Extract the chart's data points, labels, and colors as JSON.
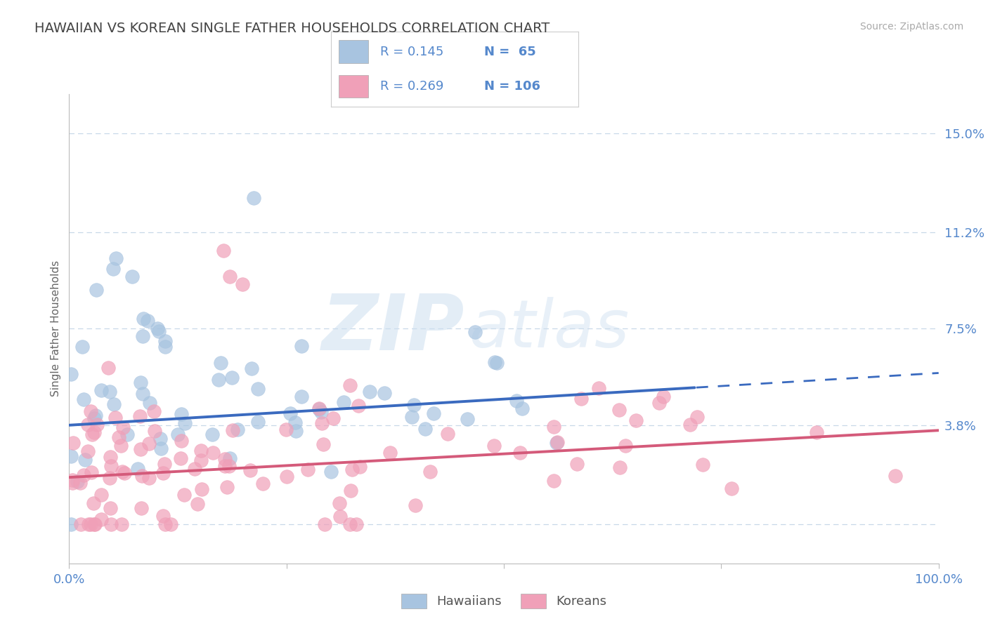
{
  "title": "HAWAIIAN VS KOREAN SINGLE FATHER HOUSEHOLDS CORRELATION CHART",
  "source_text": "Source: ZipAtlas.com",
  "ylabel": "Single Father Households",
  "xlim": [
    0,
    100
  ],
  "ylim": [
    -1.5,
    16.5
  ],
  "yticks": [
    0.0,
    3.8,
    7.5,
    11.2,
    15.0
  ],
  "ytick_labels": [
    "",
    "3.8%",
    "7.5%",
    "11.2%",
    "15.0%"
  ],
  "xtick_labels": [
    "0.0%",
    "100.0%"
  ],
  "hawaiian_color": "#a8c4e0",
  "korean_color": "#f0a0b8",
  "hawaiian_line_color": "#3a6abf",
  "korean_line_color": "#d45a7a",
  "legend_r_hawaiian": "R = 0.145",
  "legend_n_hawaiian": "N =  65",
  "legend_r_korean": "R = 0.269",
  "legend_n_korean": "N = 106",
  "watermark_zip": "ZIP",
  "watermark_atlas": "atlas",
  "background_color": "#ffffff",
  "grid_color": "#c8d8e8",
  "axis_label_color": "#5588cc",
  "title_color": "#444444",
  "hawaiian_N": 65,
  "korean_N": 106,
  "hawaiian_intercept": 3.8,
  "hawaiian_slope": 0.02,
  "korean_intercept": 1.8,
  "korean_slope": 0.018,
  "haw_solid_end": 72,
  "haw_dashed_end": 100
}
